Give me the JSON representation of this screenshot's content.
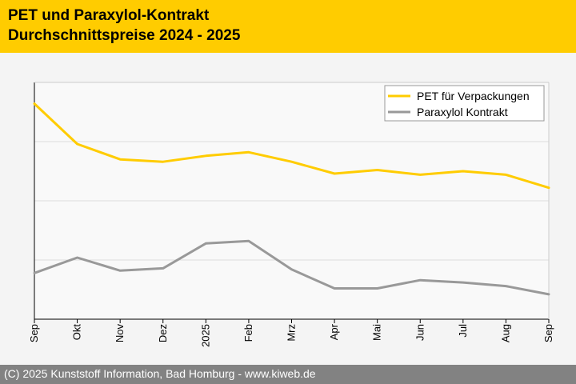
{
  "header": {
    "title_line1": "PET und Paraxylol-Kontrakt",
    "title_line2": "Durchschnittspreise 2024 - 2025",
    "background_color": "#ffcc00"
  },
  "chart_data": {
    "type": "line",
    "x": [
      "Sep",
      "Okt",
      "Nov",
      "Dez",
      "2025",
      "Feb",
      "Mrz",
      "Apr",
      "Mai",
      "Jun",
      "Jul",
      "Aug",
      "Sep"
    ],
    "series": [
      {
        "name": "PET für Verpackungen",
        "color": "#ffcc00",
        "values": [
          91,
          74,
          67.5,
          66.5,
          69,
          70.5,
          66.5,
          61.5,
          63,
          61,
          62.5,
          61,
          55.5
        ]
      },
      {
        "name": "Paraxylol Kontrakt",
        "color": "#999999",
        "values": [
          19.5,
          26,
          20.5,
          21.5,
          32,
          33,
          21,
          13,
          13,
          16.5,
          15.5,
          14,
          10.5
        ]
      }
    ],
    "ylim": [
      0,
      100
    ],
    "y_gridlines": [
      25,
      50,
      75
    ],
    "y_tick_labels_shown": false,
    "grid": true,
    "legend_position": "top-right"
  },
  "footer": {
    "text": "(C) 2025 Kunststoff Information, Bad Homburg - www.kiweb.de",
    "background_color": "#828282"
  }
}
